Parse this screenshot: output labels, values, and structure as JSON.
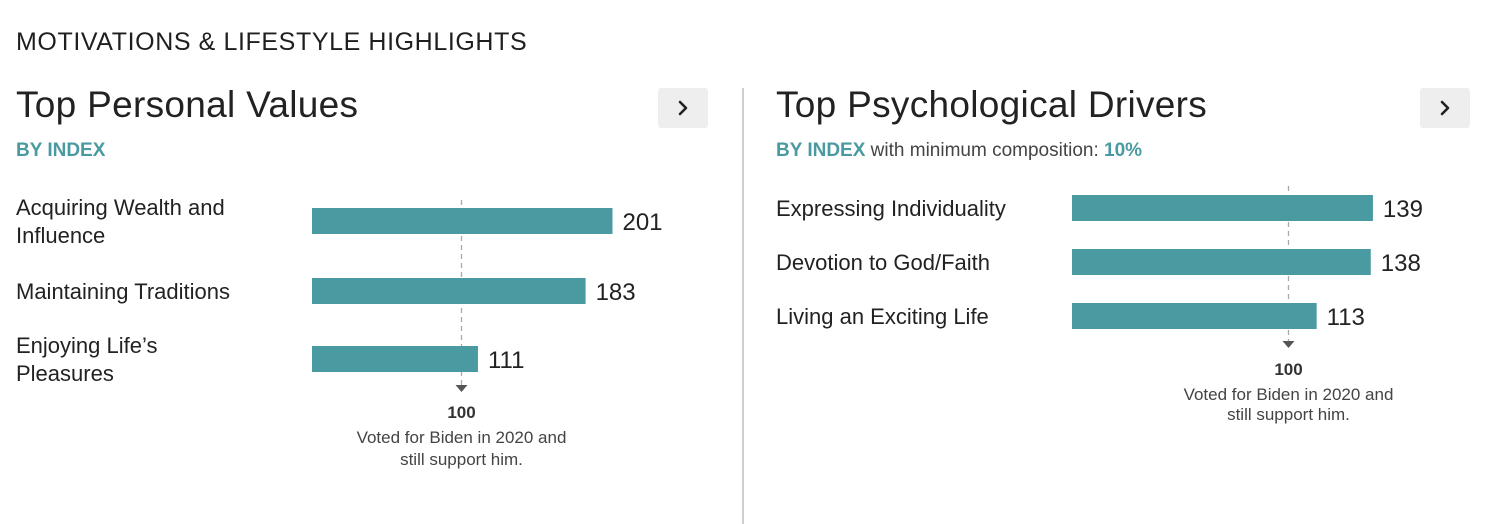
{
  "header": {
    "title": "MOTIVATIONS & LIFESTYLE HIGHLIGHTS"
  },
  "panels": [
    {
      "title": "Top Personal Values",
      "subtitle_accent": "BY INDEX",
      "subtitle_text": "",
      "subtitle_value": "",
      "nav_icon": "chevron-right-icon"
    },
    {
      "title": "Top Psychological Drivers",
      "subtitle_accent": "BY INDEX",
      "subtitle_text": " with minimum composition: ",
      "subtitle_value": "10%",
      "nav_icon": "chevron-right-icon"
    }
  ],
  "colors": {
    "bar": "#4a9aa2",
    "accent": "#4a9aa2",
    "reference_line": "#aaaaaa"
  },
  "chart_data": [
    {
      "type": "bar",
      "orientation": "horizontal",
      "title": "Top Personal Values",
      "categories": [
        [
          "Acquiring Wealth and",
          "Influence"
        ],
        [
          "Maintaining Traditions"
        ],
        [
          "Enjoying Life’s",
          "Pleasures"
        ]
      ],
      "values": [
        201,
        183,
        111
      ],
      "value_labels": [
        "201",
        "183",
        "111"
      ],
      "reference": {
        "value": 100,
        "label": "100",
        "caption": [
          "Voted for Biden in 2020 and",
          "still support him."
        ]
      }
    },
    {
      "type": "bar",
      "orientation": "horizontal",
      "title": "Top Psychological Drivers",
      "categories": [
        [
          "Expressing Individuality"
        ],
        [
          "Devotion to God/Faith"
        ],
        [
          "Living an Exciting Life"
        ]
      ],
      "values": [
        139,
        138,
        113
      ],
      "value_labels": [
        "139",
        "138",
        "113"
      ],
      "reference": {
        "value": 100,
        "label": "100",
        "caption": [
          "Voted for Biden in 2020 and",
          "still support him."
        ]
      }
    }
  ]
}
